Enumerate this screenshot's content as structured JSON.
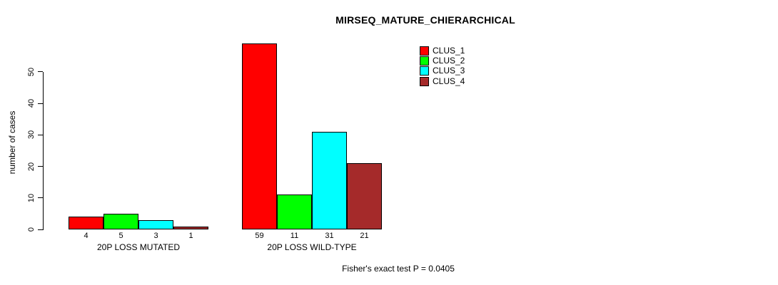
{
  "chart_data": {
    "type": "bar",
    "title": "MIRSEQ_MATURE_CHIERARCHICAL",
    "ylabel": "number of cases",
    "xlabel": "",
    "categories": [
      "20P LOSS MUTATED",
      "20P LOSS WILD-TYPE"
    ],
    "series": [
      {
        "name": "CLUS_1",
        "color": "#ff0000",
        "values": [
          4,
          59
        ]
      },
      {
        "name": "CLUS_2",
        "color": "#00ff00",
        "values": [
          5,
          11
        ]
      },
      {
        "name": "CLUS_3",
        "color": "#00ffff",
        "values": [
          3,
          31
        ]
      },
      {
        "name": "CLUS_4",
        "color": "#a52a2a",
        "values": [
          1,
          21
        ]
      }
    ],
    "yticks": [
      0,
      10,
      20,
      30,
      40,
      50
    ],
    "ylim": [
      0,
      59
    ],
    "bar_value_labels": true,
    "grid": false,
    "legend_position": "top-right",
    "annotation": "Fisher's exact test P = 0.0405",
    "axis_color": "#000000",
    "background_color": "#ffffff"
  }
}
